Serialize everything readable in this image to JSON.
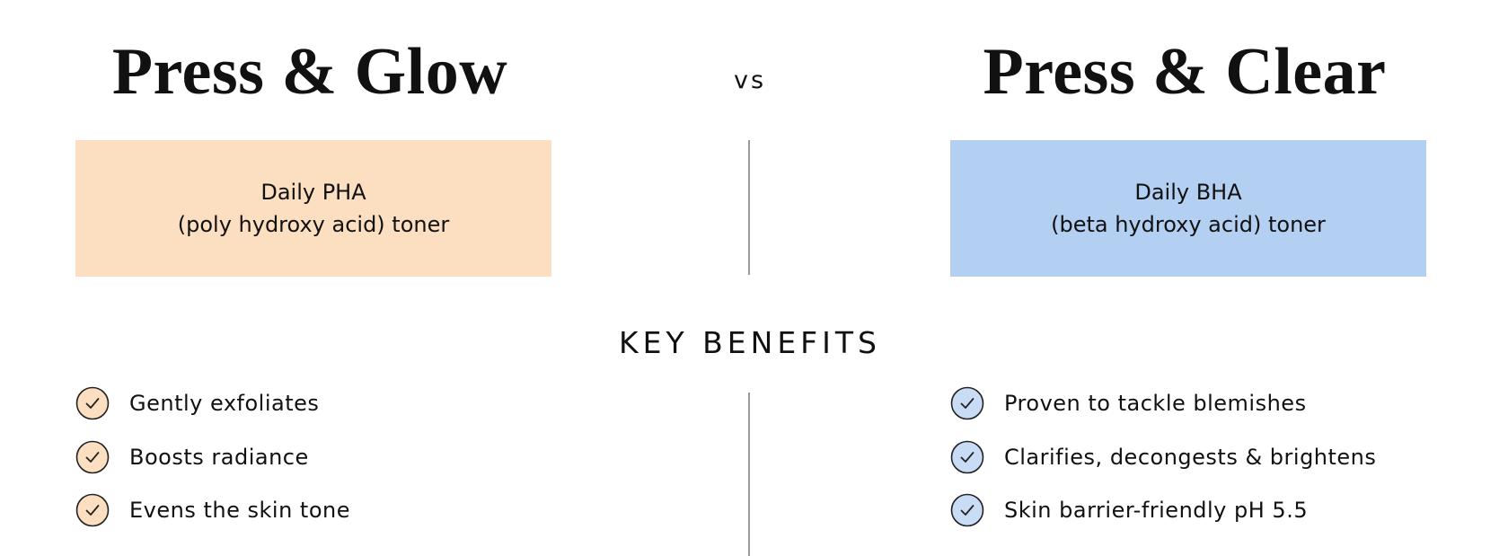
{
  "left": {
    "title": "Press & Glow",
    "description": [
      "Daily PHA",
      "(poly hydroxy acid) toner"
    ],
    "benefits": [
      "Gently exfoliates",
      "Boosts radiance",
      "Evens the skin tone"
    ]
  },
  "vs": "vs",
  "right": {
    "title": "Press & Clear",
    "description": [
      "Daily BHA",
      "(beta hydroxy acid) toner"
    ],
    "benefits": [
      "Proven to tackle blemishes",
      "Clarifies, decongests & brightens",
      "Skin barrier-friendly pH 5.5"
    ]
  },
  "heading": "KEY BENEFITS"
}
